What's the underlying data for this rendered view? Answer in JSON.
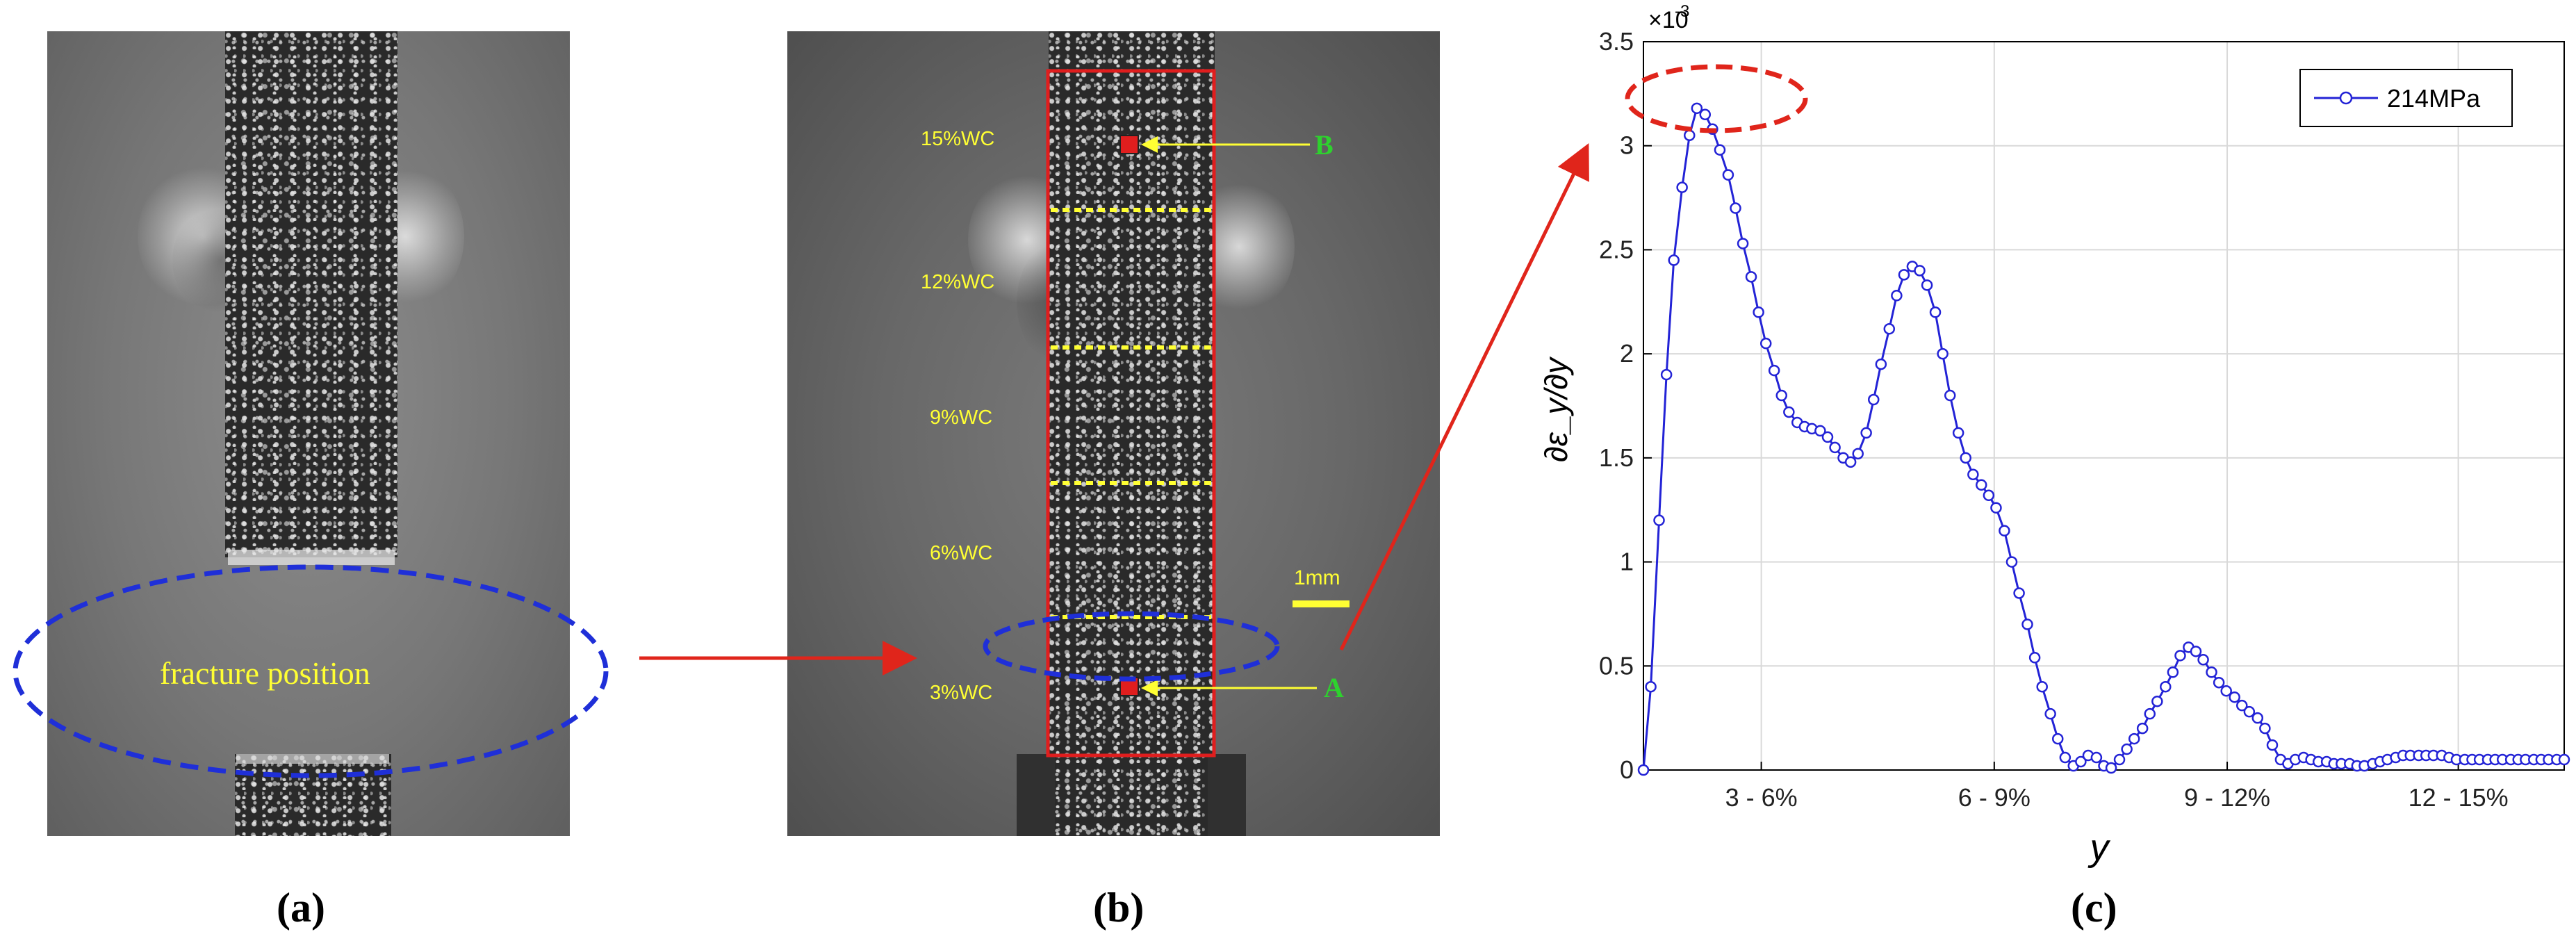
{
  "panel_a": {
    "fracture_label": "fracture position",
    "caption": "(a)"
  },
  "panel_b": {
    "zones": [
      "15%WC",
      "12%WC",
      "9%WC",
      "6%WC",
      "3%WC"
    ],
    "scale_label": "1mm",
    "point_a": "A",
    "point_b": "B",
    "caption": "(b)"
  },
  "panel_c": {
    "caption": "(c)"
  },
  "colors": {
    "series_blue": "#2323d6",
    "callout_red": "#e0251b",
    "ellipse_blue": "#1f2fd8",
    "zone_yellow": "#ffff33",
    "point_green": "#2ed12e"
  },
  "chart_data": {
    "type": "line",
    "xlabel": "y",
    "ylabel": "∂ε_y/∂y",
    "y_multiplier": "×10",
    "y_multiplier_exp": "-3",
    "ylim": [
      0,
      3.5
    ],
    "yticks": [
      "0",
      "0.5",
      "1",
      "1.5",
      "2",
      "2.5",
      "3",
      "3.5"
    ],
    "xticks": [
      "3 - 6%",
      "6 - 9%",
      "9 - 12%",
      "12 - 15%"
    ],
    "xtick_positions": [
      0.128,
      0.381,
      0.634,
      0.885
    ],
    "grid": true,
    "legend": {
      "placement": "top-right",
      "entries": [
        "214MPa"
      ]
    },
    "series": [
      {
        "name": "214MPa",
        "x": [
          0.0,
          0.008,
          0.017,
          0.025,
          0.033,
          0.042,
          0.05,
          0.058,
          0.067,
          0.075,
          0.083,
          0.092,
          0.1,
          0.108,
          0.117,
          0.125,
          0.133,
          0.142,
          0.15,
          0.158,
          0.167,
          0.175,
          0.183,
          0.192,
          0.2,
          0.208,
          0.217,
          0.225,
          0.233,
          0.242,
          0.25,
          0.258,
          0.267,
          0.275,
          0.283,
          0.292,
          0.3,
          0.308,
          0.317,
          0.325,
          0.333,
          0.342,
          0.35,
          0.358,
          0.367,
          0.375,
          0.383,
          0.392,
          0.4,
          0.408,
          0.417,
          0.425,
          0.433,
          0.442,
          0.45,
          0.458,
          0.467,
          0.475,
          0.483,
          0.492,
          0.5,
          0.508,
          0.517,
          0.525,
          0.533,
          0.542,
          0.55,
          0.558,
          0.567,
          0.575,
          0.583,
          0.592,
          0.6,
          0.608,
          0.617,
          0.625,
          0.633,
          0.642,
          0.65,
          0.658,
          0.667,
          0.675,
          0.683,
          0.692,
          0.7,
          0.708,
          0.717,
          0.725,
          0.733,
          0.742,
          0.75,
          0.758,
          0.767,
          0.775,
          0.783,
          0.792,
          0.8,
          0.808,
          0.817,
          0.825,
          0.833,
          0.842,
          0.85,
          0.858,
          0.867,
          0.875,
          0.883,
          0.892,
          0.9,
          0.908,
          0.917,
          0.925,
          0.933,
          0.942,
          0.95,
          0.958,
          0.967,
          0.975,
          0.983,
          0.992,
          1.0
        ],
        "y": [
          0.0,
          0.4,
          1.2,
          1.9,
          2.45,
          2.8,
          3.05,
          3.18,
          3.15,
          3.08,
          2.98,
          2.86,
          2.7,
          2.53,
          2.37,
          2.2,
          2.05,
          1.92,
          1.8,
          1.72,
          1.67,
          1.65,
          1.64,
          1.63,
          1.6,
          1.55,
          1.5,
          1.48,
          1.52,
          1.62,
          1.78,
          1.95,
          2.12,
          2.28,
          2.38,
          2.42,
          2.4,
          2.33,
          2.2,
          2.0,
          1.8,
          1.62,
          1.5,
          1.42,
          1.37,
          1.32,
          1.26,
          1.15,
          1.0,
          0.85,
          0.7,
          0.54,
          0.4,
          0.27,
          0.15,
          0.06,
          0.02,
          0.04,
          0.07,
          0.06,
          0.02,
          0.01,
          0.05,
          0.1,
          0.15,
          0.2,
          0.27,
          0.33,
          0.4,
          0.47,
          0.55,
          0.59,
          0.57,
          0.53,
          0.47,
          0.42,
          0.38,
          0.35,
          0.31,
          0.28,
          0.25,
          0.2,
          0.12,
          0.05,
          0.03,
          0.05,
          0.06,
          0.05,
          0.04,
          0.04,
          0.03,
          0.03,
          0.03,
          0.02,
          0.02,
          0.03,
          0.04,
          0.05,
          0.06,
          0.07,
          0.07,
          0.07,
          0.07,
          0.07,
          0.07,
          0.06,
          0.05,
          0.05,
          0.05,
          0.05,
          0.05,
          0.05,
          0.05,
          0.05,
          0.05,
          0.05,
          0.05,
          0.05,
          0.05,
          0.05,
          0.05
        ]
      }
    ]
  }
}
